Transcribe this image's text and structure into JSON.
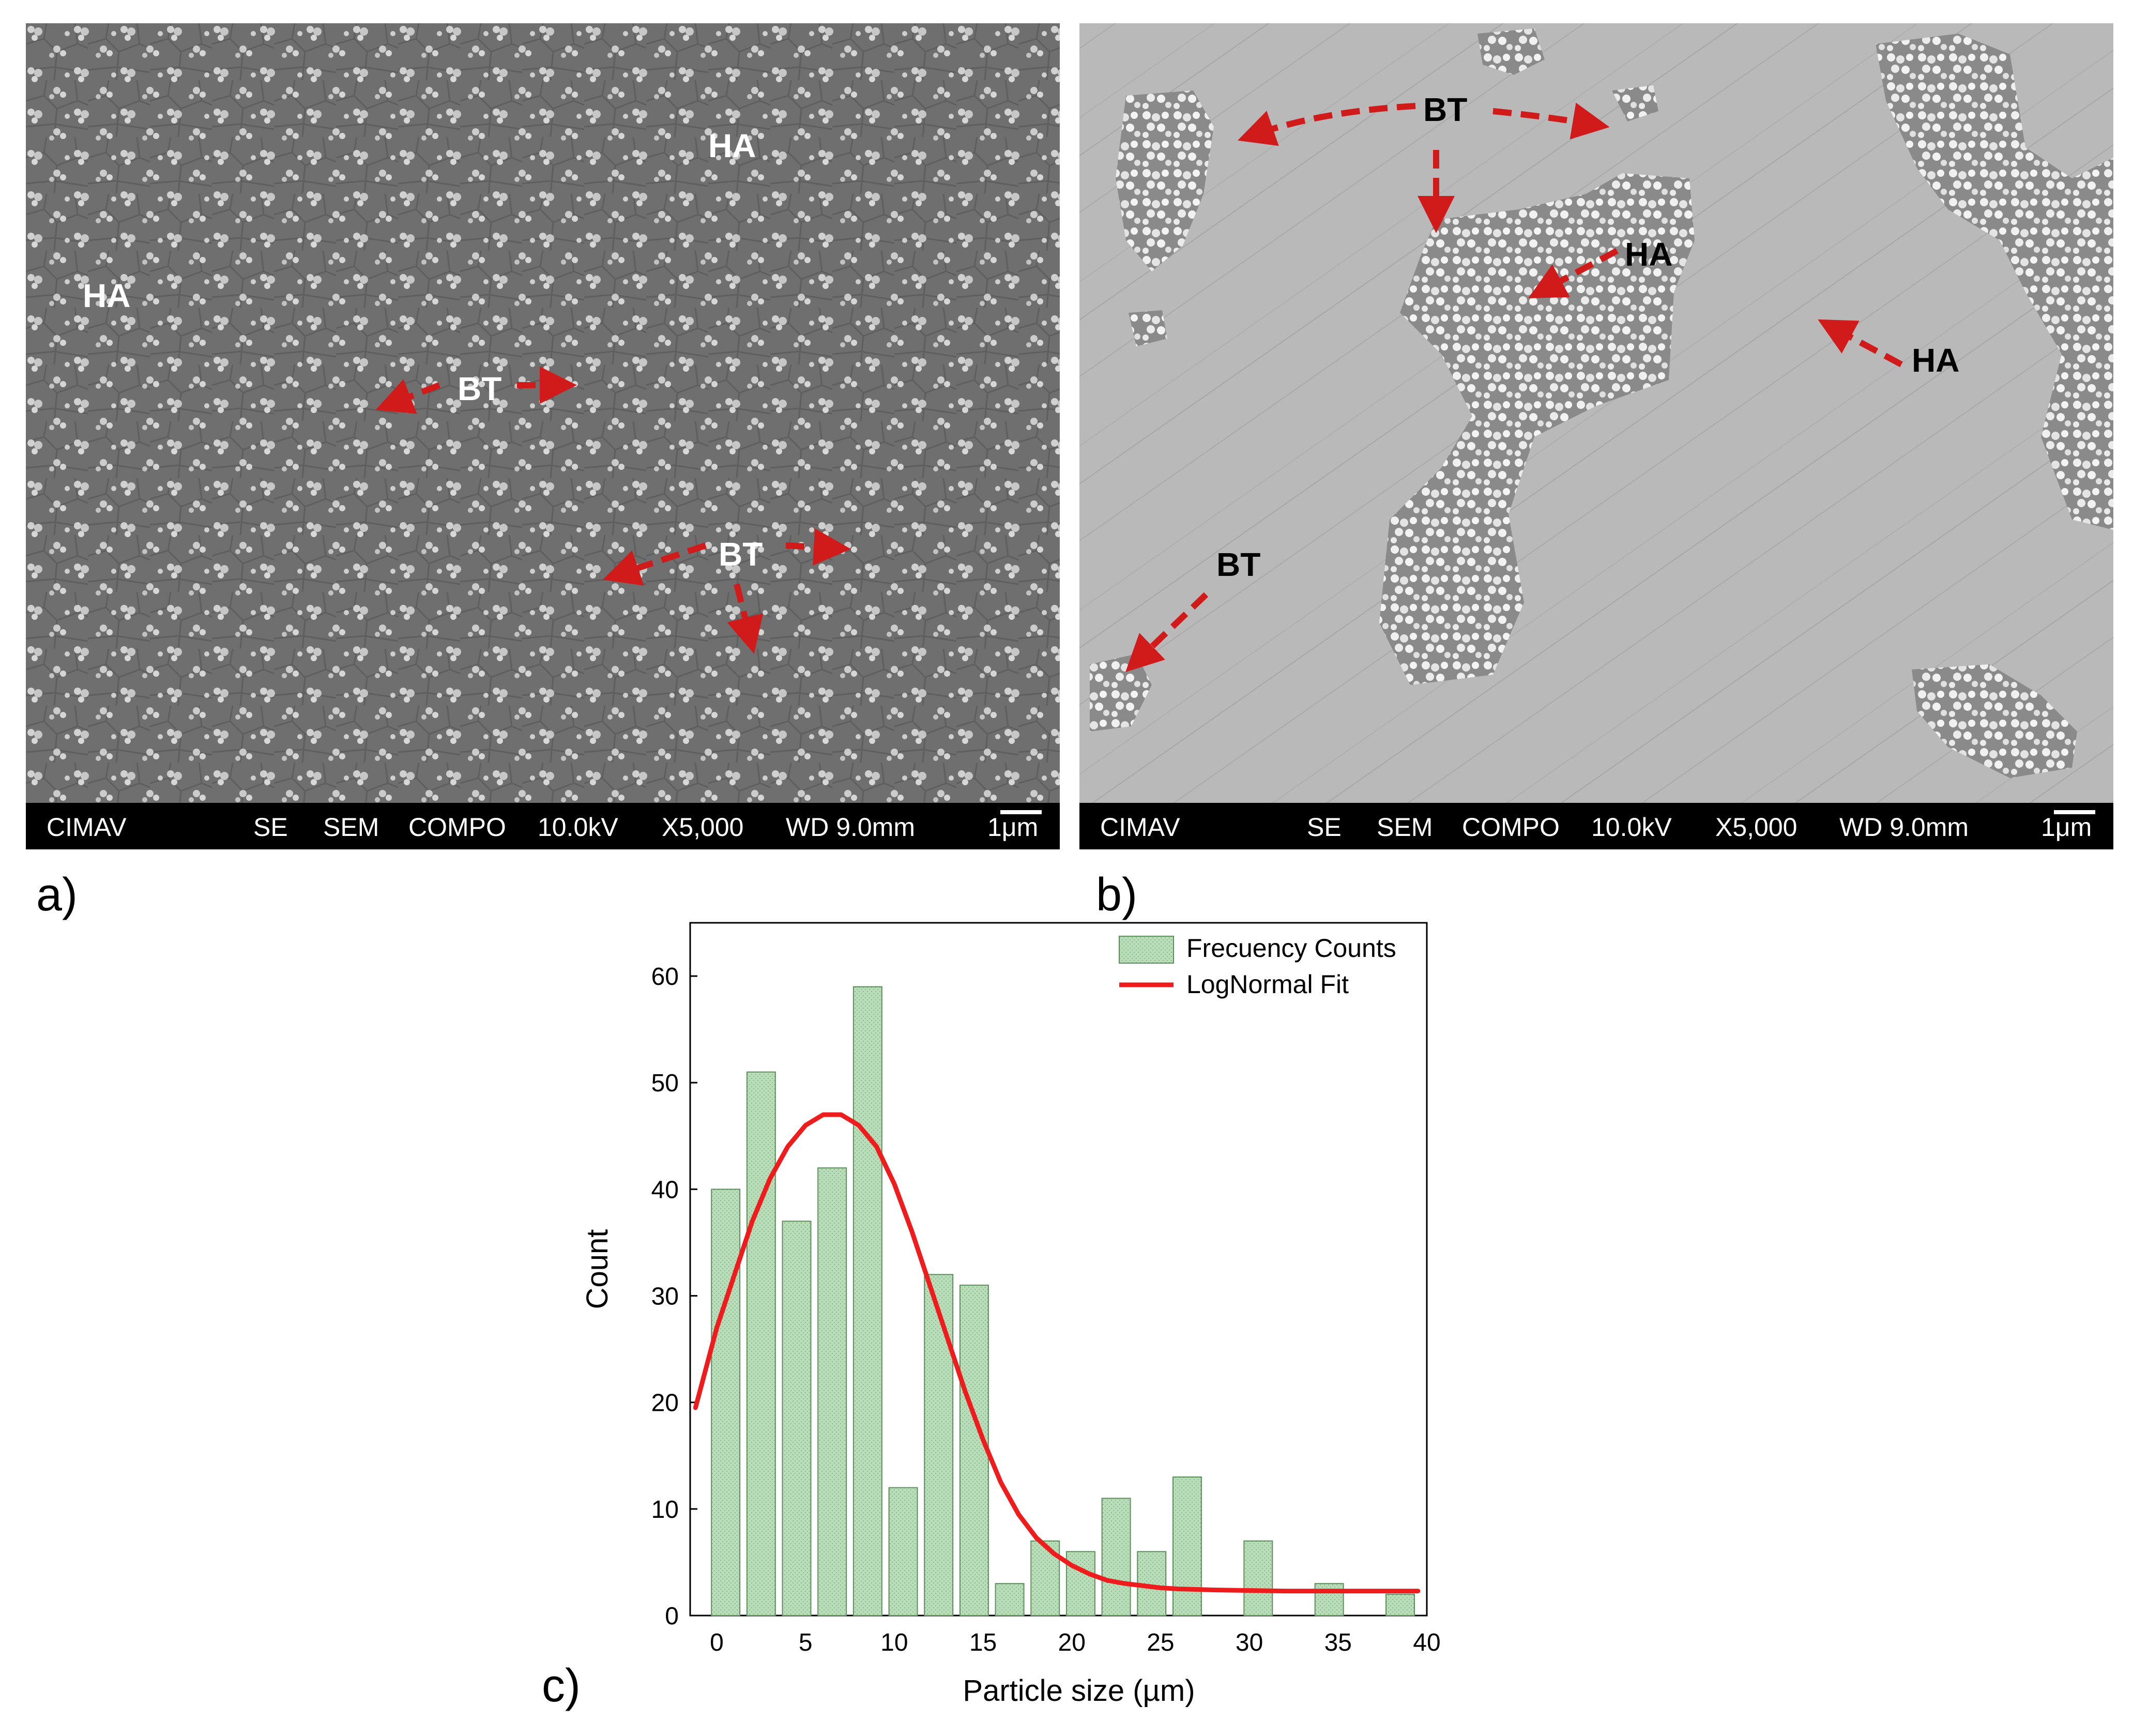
{
  "panels": {
    "a": {
      "letter": "a)",
      "labels": {
        "ha_1": "HA",
        "ha_2": "HA",
        "bt_1": "BT",
        "bt_2": "BT"
      },
      "databar": {
        "lab": "CIMAV",
        "mode1": "SE",
        "mode2": "SEM",
        "mode3": "COMPO",
        "kv": "10.0kV",
        "mag": "X5,000",
        "wd": "WD 9.0mm",
        "scale": "1μm"
      }
    },
    "b": {
      "letter": "b)",
      "labels": {
        "bt_1": "BT",
        "bt_2": "BT",
        "ha_1": "HA",
        "ha_2": "HA"
      },
      "databar": {
        "lab": "CIMAV",
        "mode1": "SE",
        "mode2": "SEM",
        "mode3": "COMPO",
        "kv": "10.0kV",
        "mag": "X5,000",
        "wd": "WD 9.0mm",
        "scale": "1μm"
      }
    },
    "c": {
      "letter": "c)"
    }
  },
  "colors": {
    "arrow": "#d11a1a",
    "bar_fill": "#b9dcb9",
    "bar_stroke": "#5d8f5d",
    "fit_line": "#ee1c1c"
  },
  "chart_data": {
    "type": "bar",
    "title": "",
    "xlabel": "Particle size (µm)",
    "ylabel": "Count",
    "xlim": [
      -1.5,
      40
    ],
    "ylim": [
      0,
      65
    ],
    "xticks": [
      0,
      5,
      10,
      15,
      20,
      25,
      30,
      35,
      40
    ],
    "yticks": [
      0,
      10,
      20,
      30,
      40,
      50,
      60
    ],
    "bar_width": 1.6,
    "legend_position": "top-right",
    "series": [
      {
        "name": "Frecuency Counts",
        "kind": "bar",
        "x": [
          0.5,
          2.5,
          4.5,
          6.5,
          8.5,
          10.5,
          12.5,
          14.5,
          16.5,
          18.5,
          20.5,
          22.5,
          24.5,
          26.5,
          30.5,
          34.5,
          38.5
        ],
        "values": [
          40,
          51,
          37,
          42,
          59,
          12,
          32,
          31,
          3,
          7,
          6,
          11,
          6,
          13,
          7,
          3,
          2
        ]
      },
      {
        "name": "LogNormal Fit",
        "kind": "line",
        "x": [
          -1.2,
          0,
          1,
          2,
          3,
          4,
          5,
          6,
          7,
          8,
          9,
          10,
          11,
          12,
          13,
          14,
          15,
          16,
          17,
          18,
          19,
          20,
          21,
          22,
          23,
          24,
          25,
          26,
          28,
          30,
          32,
          35,
          38,
          39.5
        ],
        "values": [
          19.5,
          27,
          32,
          37,
          41,
          44,
          46,
          47,
          47,
          46,
          44,
          40.5,
          36,
          31,
          26,
          21,
          16.5,
          12.5,
          9.5,
          7.3,
          5.8,
          4.7,
          3.9,
          3.3,
          3.0,
          2.8,
          2.6,
          2.5,
          2.4,
          2.35,
          2.3,
          2.3,
          2.3,
          2.3
        ]
      }
    ]
  }
}
